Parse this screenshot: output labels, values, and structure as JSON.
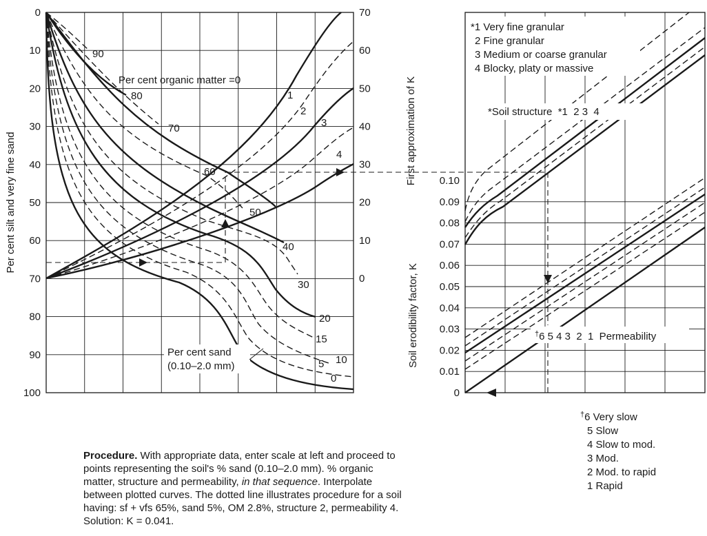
{
  "left_chart": {
    "left_axis_title": "Per cent silt and very fine sand",
    "right_axis_title": "First approximation of K",
    "left_ticks": [
      "0",
      "10",
      "20",
      "30",
      "40",
      "50",
      "60",
      "70",
      "80",
      "90",
      "100"
    ],
    "right_ticks": [
      "70",
      "60",
      "50",
      "40",
      "30",
      "20",
      "10",
      "0"
    ],
    "sand_labels": [
      "90",
      "80",
      "70",
      "60",
      "50",
      "40",
      "30",
      "20",
      "15",
      "10",
      "5",
      "0"
    ],
    "om_title": "Per cent organic matter =0",
    "om_labels": [
      "1",
      "2",
      "3",
      "4"
    ],
    "sand_title_1": "Per cent sand",
    "sand_title_2": "(0.10–2.0 mm)"
  },
  "right_chart": {
    "axis_title": "Soil erodibility factor, K",
    "ticks": [
      "0",
      "0.01",
      "0.02",
      "0.03",
      "0.04",
      "0.05",
      "0.06",
      "0.07",
      "0.08",
      "0.09",
      "0.10"
    ],
    "structure_legend": [
      "*1 Very fine granular",
      "2 Fine granular",
      "3 Medium or coarse granular",
      "4 Blocky, platy or massive"
    ],
    "structure_caption": "*Soil structure  *1  2 3  4",
    "permeability_caption": "6 5 4 3  2  1  Permeability",
    "permeability_mark": "†",
    "permeability_legend": [
      "6 Very slow",
      "5 Slow",
      "4 Slow to mod.",
      "3 Mod.",
      "2 Mod. to rapid",
      "1 Rapid"
    ]
  },
  "procedure": {
    "heading": "Procedure.",
    "text_1": " With appropriate data, enter scale at left and proceed to points representing the soil's % sand (0.10–2.0 mm). % organic matter, structure and permeability, ",
    "text_italic": "in that sequence",
    "text_2": ". Interpolate between plotted curves. The dotted line illustrates procedure for a soil having: sf + vfs 65%, sand 5%, OM 2.8%, structure 2, permeability 4.",
    "solution": "Solution: K = 0.041."
  },
  "chart_data": [
    {
      "type": "line",
      "xlabel": "",
      "ylabel": "Per cent silt and very fine sand",
      "y2label": "First approximation of K",
      "ylim": [
        0,
        100
      ],
      "y2lim": [
        0,
        70
      ],
      "grid": true,
      "example": {
        "silt_vfs": 65,
        "sand": 5,
        "organic_matter": 2.8,
        "first_approx_K": 28
      },
      "series_groups": [
        "sand",
        "organic_matter"
      ]
    },
    {
      "type": "line",
      "ylabel": "Soil erodibility factor, K",
      "ylim": [
        0,
        0.1
      ],
      "grid": true,
      "example": {
        "structure": 2,
        "permeability": 4,
        "K": 0.041
      }
    }
  ]
}
